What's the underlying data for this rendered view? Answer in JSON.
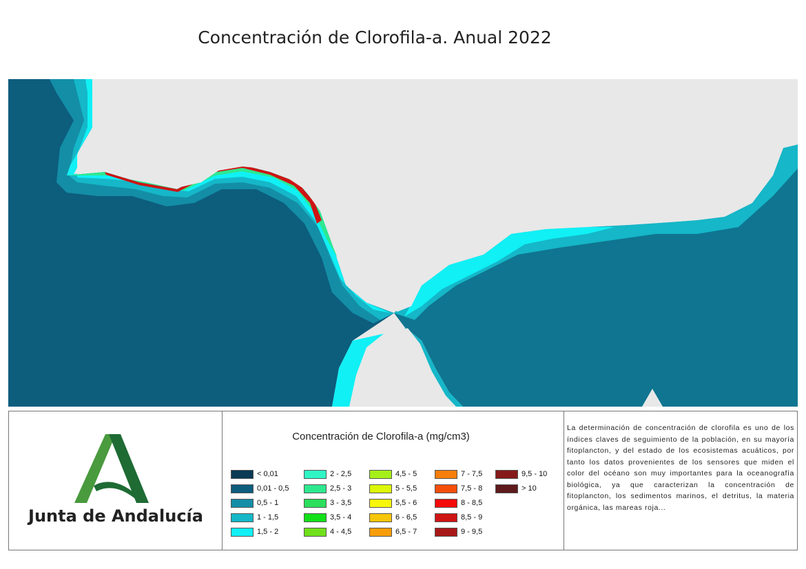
{
  "title": "Concentración de Clorofila-a. Anual 2022",
  "logo": {
    "text": "Junta de Andalucía",
    "colors": {
      "dark": "#1e6b34",
      "light": "#4a9a3e"
    }
  },
  "legend": {
    "title": "Concentración de Clorofila-a (mg/cm3)",
    "items": [
      {
        "label": "< 0,01",
        "color": "#0a3a55"
      },
      {
        "label": "0,01 - 0,5",
        "color": "#0d5d7d"
      },
      {
        "label": "0,5 - 1",
        "color": "#138ea6"
      },
      {
        "label": "1 - 1,5",
        "color": "#15b7c8"
      },
      {
        "label": "1,5 - 2",
        "color": "#10f0f5"
      },
      {
        "label": "2 - 2,5",
        "color": "#2ff5c5"
      },
      {
        "label": "2,5 - 3",
        "color": "#2de88f"
      },
      {
        "label": "3 - 3,5",
        "color": "#2bde5b"
      },
      {
        "label": "3,5 - 4",
        "color": "#12e019"
      },
      {
        "label": "4 - 4,5",
        "color": "#70e01b"
      },
      {
        "label": "4,5 - 5",
        "color": "#a6f01a"
      },
      {
        "label": "5 - 5,5",
        "color": "#dcf709"
      },
      {
        "label": "5,5 - 6",
        "color": "#f7f70a"
      },
      {
        "label": "6 - 6,5",
        "color": "#f7c509"
      },
      {
        "label": "6,5 - 7",
        "color": "#f79d0a"
      },
      {
        "label": "7 - 7,5",
        "color": "#f77e0a"
      },
      {
        "label": "7,5 - 8",
        "color": "#f54e0b"
      },
      {
        "label": "8 - 8,5",
        "color": "#f50a0a"
      },
      {
        "label": "8,5 - 9",
        "color": "#cf1414"
      },
      {
        "label": "9 - 9,5",
        "color": "#a81818"
      },
      {
        "label": "9,5 - 10",
        "color": "#861a1a"
      },
      {
        "label": "> 10",
        "color": "#5e1a1c"
      }
    ]
  },
  "description": "La determinación de concentración de clorofila es uno de los índices claves de seguimiento de la población, en su mayoría fitoplancton, y del estado de los ecosistemas acuáticos, por tanto los datos provenientes de los sensores que miden el color del océano son muy importantes para la oceanografía biológica, ya que caracterizan la concentración de fitoplancton, los sedimentos marinos, el detritus, la materia orgánica, las mareas roja...",
  "map_colors": {
    "land": "#e8e8e8",
    "ocean_deep": "#0d5d7d",
    "ocean_mid": "#138ea6",
    "ocean_shelf": "#15b7c8",
    "coastal": "#10f0f5",
    "high": "#2de88f",
    "very_high": "#cf1414"
  }
}
